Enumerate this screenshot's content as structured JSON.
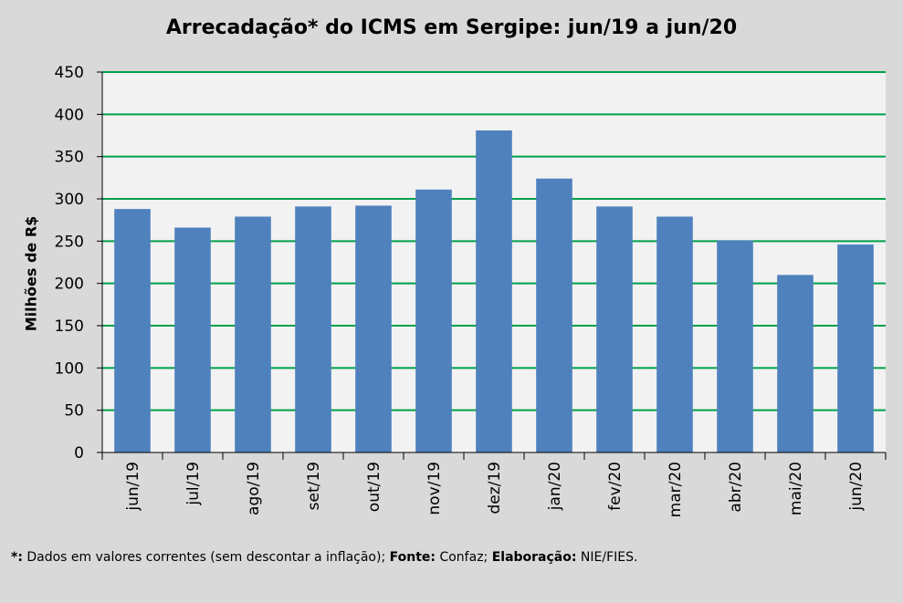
{
  "chart_data": {
    "type": "bar",
    "title": "Arrecadação* do ICMS em Sergipe: jun/19 a jun/20",
    "xlabel": "",
    "ylabel": "Milhões de R$",
    "ylim": [
      0,
      450
    ],
    "yticks": [
      0,
      50,
      100,
      150,
      200,
      250,
      300,
      350,
      400,
      450
    ],
    "categories": [
      "jun/19",
      "jul/19",
      "ago/19",
      "set/19",
      "out/19",
      "nov/19",
      "dez/19",
      "jan/20",
      "fev/20",
      "mar/20",
      "abr/20",
      "mai/20",
      "jun/20"
    ],
    "values": [
      288,
      266,
      279,
      291,
      292,
      311,
      381,
      324,
      291,
      279,
      251,
      210,
      246
    ],
    "grid": true,
    "bar_color": "#4f81bd",
    "grid_color": "#00a04a"
  },
  "footnote": {
    "star": "*:",
    "text1": " Dados em valores correntes (sem descontar a inflação); ",
    "fonte_label": "Fonte:",
    "fonte": " Confaz; ",
    "elab_label": "Elaboração:",
    "elab": " NIE/FIES."
  }
}
